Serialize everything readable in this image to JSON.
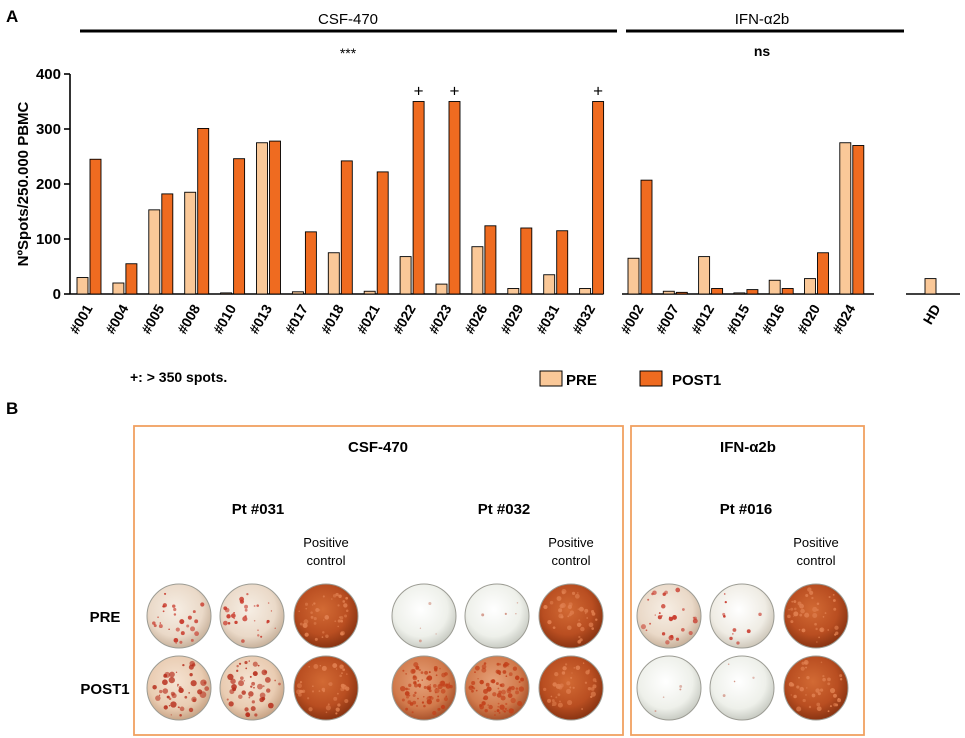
{
  "panel_a_label": "A",
  "panel_b_label": "B",
  "chart_data": {
    "type": "bar",
    "ylabel": "NºSpots/250.000 PBMC",
    "ylim": [
      0,
      400
    ],
    "yticks": [
      0,
      100,
      200,
      300,
      400
    ],
    "groups": [
      {
        "name": "CSF-470",
        "significance": "***",
        "categories": [
          "#001",
          "#004",
          "#005",
          "#008",
          "#010",
          "#013",
          "#017",
          "#018",
          "#021",
          "#022",
          "#023",
          "#026",
          "#029",
          "#031",
          "#032"
        ],
        "pre": [
          30,
          20,
          153,
          185,
          2,
          275,
          4,
          75,
          5,
          68,
          18,
          86,
          10,
          35,
          10
        ],
        "post1": [
          245,
          55,
          182,
          301,
          246,
          278,
          113,
          242,
          222,
          350,
          350,
          124,
          120,
          115,
          350
        ],
        "over_limit": [
          "#022",
          "#023",
          "#032"
        ]
      },
      {
        "name": "IFN-α2b",
        "significance": "ns",
        "categories": [
          "#002",
          "#007",
          "#012",
          "#015",
          "#016",
          "#020",
          "#024"
        ],
        "pre": [
          65,
          5,
          68,
          2,
          25,
          28,
          275
        ],
        "post1": [
          207,
          3,
          10,
          8,
          10,
          75,
          270
        ],
        "over_limit": []
      },
      {
        "name": "",
        "categories": [
          "HD"
        ],
        "pre": [
          28
        ],
        "post1": [
          null
        ]
      }
    ],
    "over_limit_marker": "+",
    "footnote": "+: > 350 spots.",
    "legend": [
      {
        "name": "PRE",
        "color": "#FAC898"
      },
      {
        "name": "POST1",
        "color": "#EF6B20"
      }
    ]
  },
  "panel_b": {
    "boxes": [
      {
        "title": "CSF-470",
        "patients": [
          {
            "label": "Pt #031",
            "control_label": [
              "Positive",
              "control"
            ],
            "wells": {
              "pre": [
                "spotted",
                "spotted",
                "positive"
              ],
              "post1": [
                "heavy",
                "heavy",
                "positive"
              ]
            }
          },
          {
            "label": "Pt #032",
            "control_label": [
              "Positive",
              "control"
            ],
            "wells": {
              "pre": [
                "clear",
                "clear",
                "positive"
              ],
              "post1": [
                "dense",
                "dense",
                "positive"
              ]
            }
          }
        ]
      },
      {
        "title": "IFN-α2b",
        "patients": [
          {
            "label": "Pt #016",
            "control_label": [
              "Positive",
              "control"
            ],
            "wells": {
              "pre": [
                "spotted",
                "light",
                "positive"
              ],
              "post1": [
                "clear",
                "clear",
                "positive"
              ]
            }
          }
        ]
      }
    ],
    "row_labels": [
      "PRE",
      "POST1"
    ]
  }
}
